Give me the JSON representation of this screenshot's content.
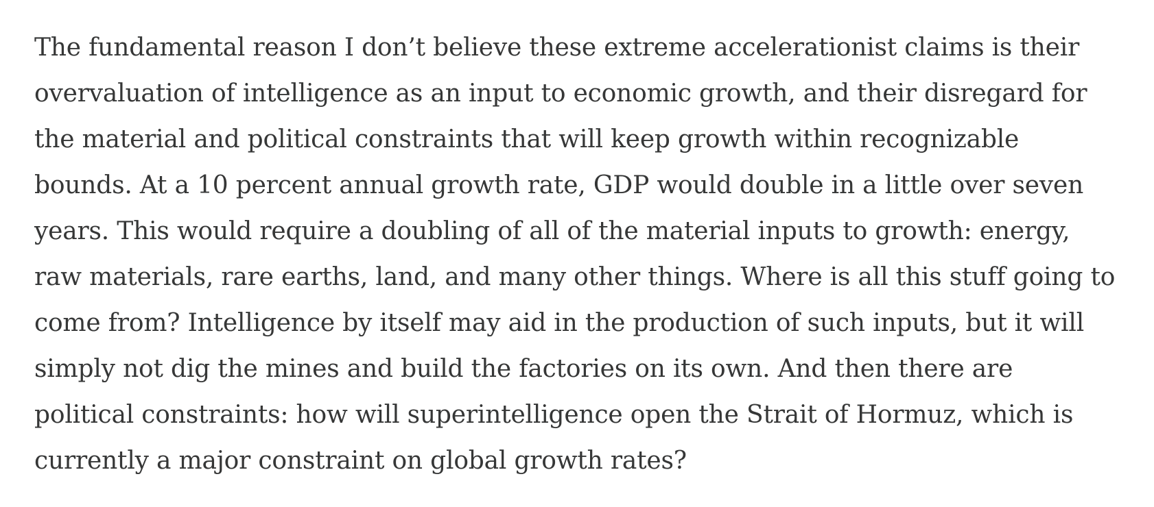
{
  "article": {
    "paragraph_lines": [
      "The fundamental reason I don’t believe these extreme accelerationist claims is their",
      "overvaluation of intelligence as an input to economic growth, and their disregard for",
      "the material and political constraints that will keep growth within recognizable",
      "bounds. At a 10 percent annual growth rate, GDP would double in a little over seven",
      "years. This would require a doubling of all of the material inputs to growth: energy,",
      "raw materials, rare earths, land, and many other things. Where is all this stuff going to",
      "come from? Intelligence by itself may aid in the production of such inputs, but it will",
      "simply not dig the mines and build the factories on its own. And then there are",
      "political constraints: how will superintelligence open the Strait of Hormuz, which is",
      "currently a major constraint on global growth rates?"
    ]
  },
  "colors": {
    "background": "#ffffff",
    "text": "#363737"
  }
}
